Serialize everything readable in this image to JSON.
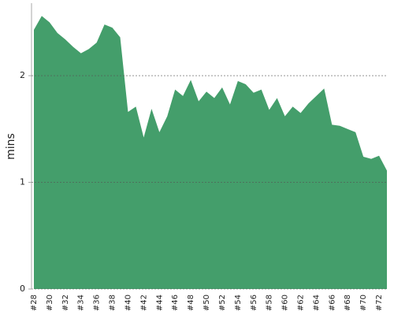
{
  "chart_data": {
    "type": "area",
    "y_label": "mins",
    "categories": [
      "#28",
      null,
      "#30",
      null,
      "#32",
      null,
      "#34",
      null,
      "#36",
      null,
      "#38",
      null,
      "#40",
      null,
      "#42",
      null,
      "#44",
      null,
      "#46",
      null,
      "#48",
      null,
      "#50",
      null,
      "#52",
      null,
      "#54",
      null,
      "#56",
      null,
      "#58",
      null,
      "#60",
      null,
      "#62",
      null,
      "#64",
      null,
      "#66",
      null,
      "#68",
      null,
      "#70",
      null,
      "#72",
      null
    ],
    "values": [
      2.43,
      2.56,
      2.5,
      2.4,
      2.34,
      2.27,
      2.21,
      2.25,
      2.31,
      2.48,
      2.45,
      2.36,
      1.66,
      1.71,
      1.42,
      1.69,
      1.47,
      1.62,
      1.87,
      1.81,
      1.96,
      1.76,
      1.85,
      1.79,
      1.89,
      1.73,
      1.95,
      1.92,
      1.84,
      1.87,
      1.68,
      1.79,
      1.62,
      1.71,
      1.65,
      1.74,
      1.81,
      1.88,
      1.54,
      1.53,
      1.5,
      1.47,
      1.24,
      1.22,
      1.25,
      1.11
    ],
    "color": "#449e6b",
    "ylim": [
      0,
      2.68
    ],
    "yticks": [
      0,
      1,
      2
    ],
    "grid": true
  }
}
